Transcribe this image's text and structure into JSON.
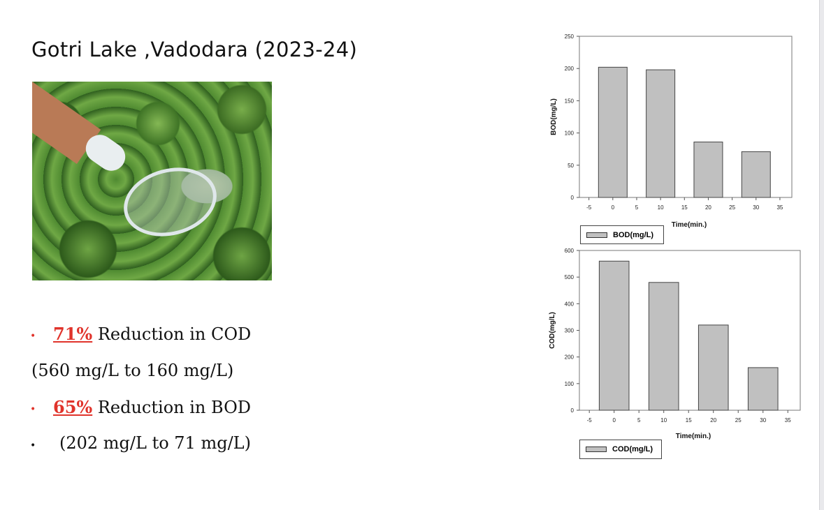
{
  "title": "Gotri Lake ,Vadodara (2023-24)",
  "bullets": [
    {
      "pct": "71%",
      "text": " Reduction in COD",
      "dot_color": "#e0332b"
    },
    {
      "text": "(560 mg/L to 160 mg/L)"
    },
    {
      "pct": "65%",
      "text": " Reduction in BOD",
      "dot_color": "#e0332b"
    },
    {
      "text": "(202 mg/L to 71 mg/L)",
      "dot_color": "#111111"
    }
  ],
  "colors": {
    "accent": "#e0332b",
    "bar": "#c0c0c0"
  },
  "chart_data": [
    {
      "type": "bar",
      "x": [
        0,
        10,
        20,
        30
      ],
      "values": [
        202,
        198,
        86,
        71
      ],
      "xlabel": "Time(min.)",
      "ylabel": "BOD(mg/L)",
      "legend": "BOD(mg/L)",
      "legend_position": "bottom-left",
      "xticks": [
        "-5",
        "0",
        "5",
        "10",
        "15",
        "20",
        "25",
        "30",
        "35"
      ],
      "yticks": [
        "0",
        "50",
        "100",
        "150",
        "200",
        "250"
      ],
      "xlim": [
        -7,
        37.5
      ],
      "ylim": [
        0,
        250
      ],
      "grid": false
    },
    {
      "type": "bar",
      "x": [
        0,
        10,
        20,
        30
      ],
      "values": [
        560,
        480,
        320,
        160
      ],
      "xlabel": "Time(min.)",
      "ylabel": "COD(mg/L)",
      "legend": "COD(mg/L)",
      "legend_position": "bottom-left",
      "xticks": [
        "-5",
        "0",
        "5",
        "10",
        "15",
        "20",
        "25",
        "30",
        "35"
      ],
      "yticks": [
        "0",
        "100",
        "200",
        "300",
        "400",
        "500",
        "600"
      ],
      "xlim": [
        -7,
        37.5
      ],
      "ylim": [
        0,
        600
      ],
      "grid": false
    }
  ]
}
